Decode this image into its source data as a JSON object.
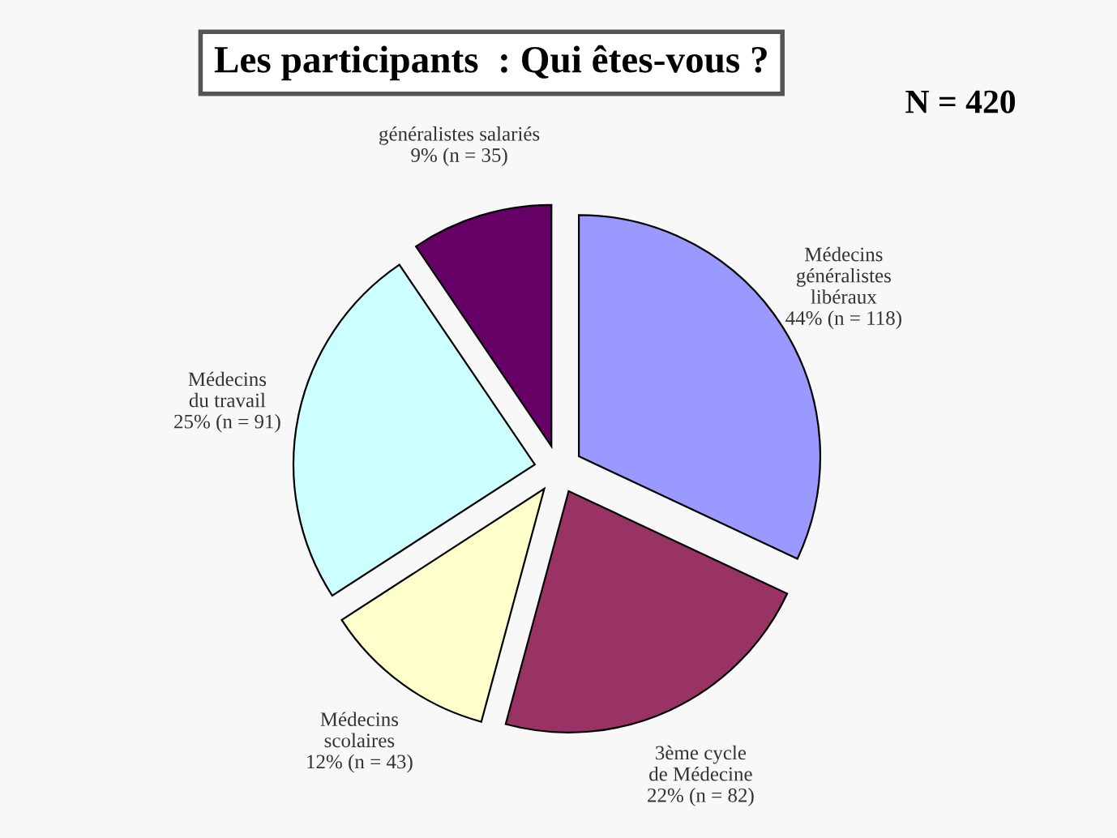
{
  "chart_data": {
    "type": "pie",
    "title": "Les participants  : Qui êtes-vous ?",
    "annotations": [
      "N = 420"
    ],
    "categories": [
      "Médecins\ngénéralistes\nlibéraux",
      "3ème cycle\nde Médecine",
      "Médecins\nscolaires",
      "Médecins\ndu travail",
      "généralistes salariés"
    ],
    "values": [
      118,
      82,
      43,
      91,
      35
    ],
    "value_labels": [
      "44% (n = 118)",
      "22% (n = 82)",
      "12% (n = 43)",
      "25% (n = 91)",
      "9% (n = 35)"
    ],
    "colors": [
      "#9999ff",
      "#993366",
      "#ffffcc",
      "#ccffff",
      "#660066"
    ],
    "legend": false
  }
}
